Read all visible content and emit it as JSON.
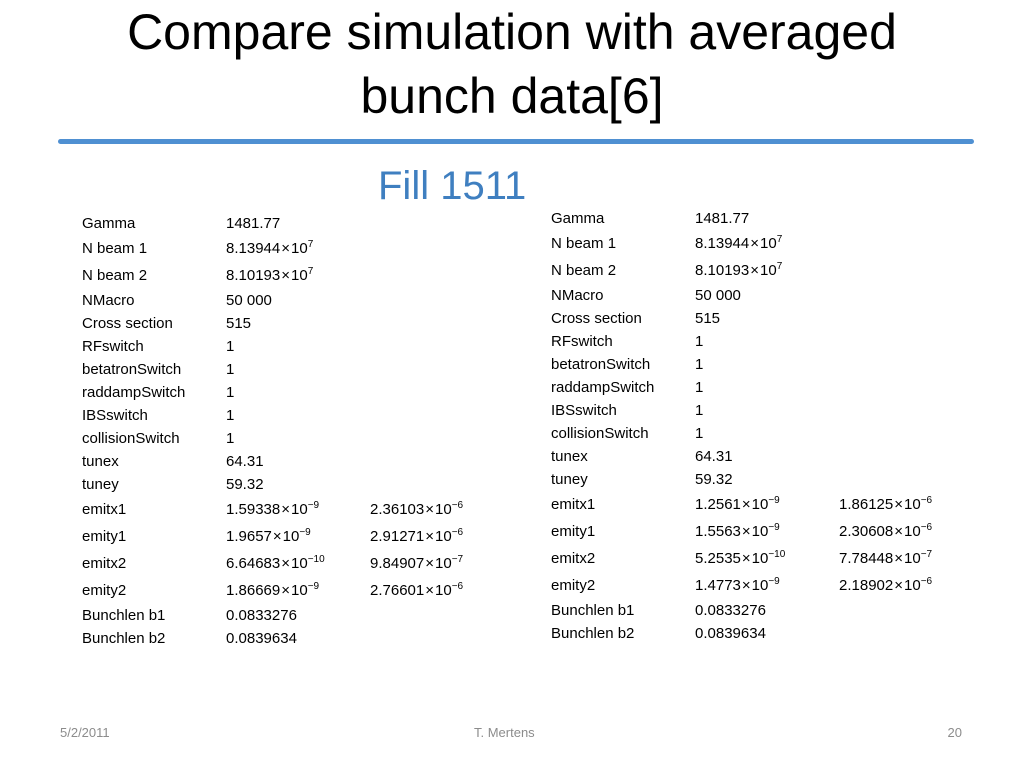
{
  "slide": {
    "title_line1": "Compare simulation with averaged",
    "title_line2": "bunch data[6]",
    "subtitle": "Fill 1511",
    "colors": {
      "title": "#000000",
      "subtitle": "#3f7fc0",
      "rule": "#4f90d2",
      "footer": "#8c8c8c"
    }
  },
  "tables": [
    {
      "rows": [
        {
          "label": "Gamma",
          "v1": "1481.77"
        },
        {
          "label": "N beam 1",
          "v1": {
            "m": "8.13944",
            "e": "7"
          }
        },
        {
          "label": "N beam 2",
          "v1": {
            "m": "8.10193",
            "e": "7"
          }
        },
        {
          "label": "NMacro",
          "v1": "50 000"
        },
        {
          "label": "Cross section",
          "v1": "515"
        },
        {
          "label": "RFswitch",
          "v1": "1"
        },
        {
          "label": "betatronSwitch",
          "v1": "1"
        },
        {
          "label": "raddampSwitch",
          "v1": "1"
        },
        {
          "label": "IBSswitch",
          "v1": "1"
        },
        {
          "label": "collisionSwitch",
          "v1": "1"
        },
        {
          "label": "tunex",
          "v1": "64.31"
        },
        {
          "label": "tuney",
          "v1": "59.32"
        },
        {
          "label": "emitx1",
          "v1": {
            "m": "1.59338",
            "e": "−9"
          },
          "v2": {
            "m": "2.36103",
            "e": "−6"
          }
        },
        {
          "label": "emity1",
          "v1": {
            "m": "1.9657",
            "e": "−9"
          },
          "v2": {
            "m": "2.91271",
            "e": "−6"
          }
        },
        {
          "label": "emitx2",
          "v1": {
            "m": "6.64683",
            "e": "−10"
          },
          "v2": {
            "m": "9.84907",
            "e": "−7"
          }
        },
        {
          "label": "emity2",
          "v1": {
            "m": "1.86669",
            "e": "−9"
          },
          "v2": {
            "m": "2.76601",
            "e": "−6"
          }
        },
        {
          "label": "Bunchlen b1",
          "v1": "0.0833276"
        },
        {
          "label": "Bunchlen b2",
          "v1": "0.0839634"
        }
      ]
    },
    {
      "rows": [
        {
          "label": "Gamma",
          "v1": "1481.77"
        },
        {
          "label": "N beam 1",
          "v1": {
            "m": "8.13944",
            "e": "7"
          }
        },
        {
          "label": "N beam 2",
          "v1": {
            "m": "8.10193",
            "e": "7"
          }
        },
        {
          "label": "NMacro",
          "v1": "50 000"
        },
        {
          "label": "Cross section",
          "v1": "515"
        },
        {
          "label": "RFswitch",
          "v1": "1"
        },
        {
          "label": "betatronSwitch",
          "v1": "1"
        },
        {
          "label": "raddampSwitch",
          "v1": "1"
        },
        {
          "label": "IBSswitch",
          "v1": "1"
        },
        {
          "label": "collisionSwitch",
          "v1": "1"
        },
        {
          "label": "tunex",
          "v1": "64.31"
        },
        {
          "label": "tuney",
          "v1": "59.32"
        },
        {
          "label": "emitx1",
          "v1": {
            "m": "1.2561",
            "e": "−9"
          },
          "v2": {
            "m": "1.86125",
            "e": "−6"
          }
        },
        {
          "label": "emity1",
          "v1": {
            "m": "1.5563",
            "e": "−9"
          },
          "v2": {
            "m": "2.30608",
            "e": "−6"
          }
        },
        {
          "label": "emitx2",
          "v1": {
            "m": "5.2535",
            "e": "−10"
          },
          "v2": {
            "m": "7.78448",
            "e": "−7"
          }
        },
        {
          "label": "emity2",
          "v1": {
            "m": "1.4773",
            "e": "−9"
          },
          "v2": {
            "m": "2.18902",
            "e": "−6"
          }
        },
        {
          "label": "Bunchlen b1",
          "v1": "0.0833276"
        },
        {
          "label": "Bunchlen b2",
          "v1": "0.0839634"
        }
      ]
    }
  ],
  "footer": {
    "date": "5/2/2011",
    "author": "T. Mertens",
    "page": "20"
  }
}
